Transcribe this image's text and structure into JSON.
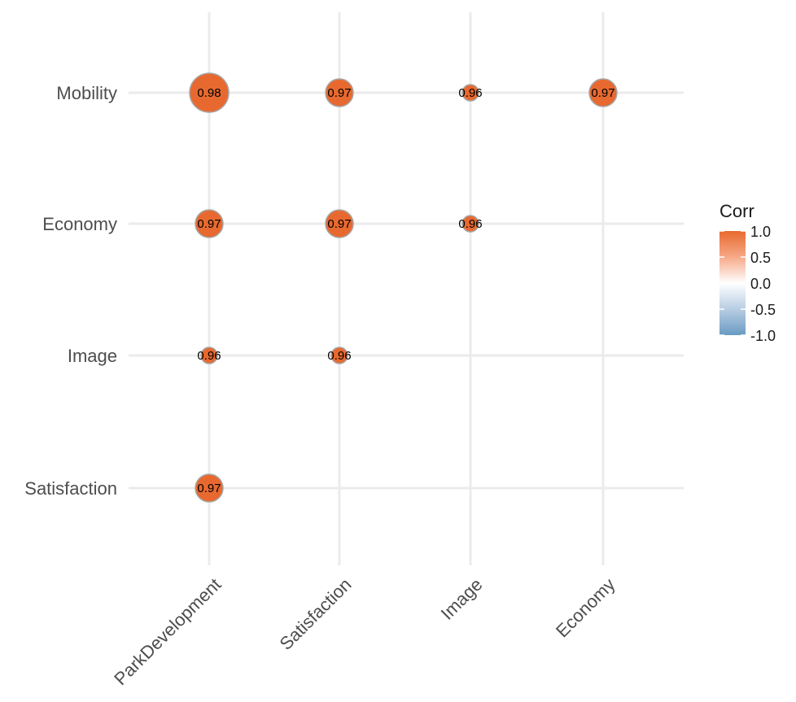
{
  "chart_data": {
    "type": "scatter",
    "subtype": "correlation-matrix",
    "title": "",
    "x_categories": [
      "ParkDevelopment",
      "Satisfaction",
      "Image",
      "Economy"
    ],
    "y_categories": [
      "Satisfaction",
      "Image",
      "Economy",
      "Mobility"
    ],
    "cells": [
      {
        "x": "ParkDevelopment",
        "y": "Mobility",
        "value": 0.98,
        "label": "0.98"
      },
      {
        "x": "Satisfaction",
        "y": "Mobility",
        "value": 0.97,
        "label": "0.97"
      },
      {
        "x": "Image",
        "y": "Mobility",
        "value": 0.96,
        "label": "0.96"
      },
      {
        "x": "Economy",
        "y": "Mobility",
        "value": 0.97,
        "label": "0.97"
      },
      {
        "x": "ParkDevelopment",
        "y": "Economy",
        "value": 0.97,
        "label": "0.97"
      },
      {
        "x": "Satisfaction",
        "y": "Economy",
        "value": 0.97,
        "label": "0.97"
      },
      {
        "x": "Image",
        "y": "Economy",
        "value": 0.96,
        "label": "0.96"
      },
      {
        "x": "ParkDevelopment",
        "y": "Image",
        "value": 0.96,
        "label": "0.96"
      },
      {
        "x": "Satisfaction",
        "y": "Image",
        "value": 0.96,
        "label": "0.96"
      },
      {
        "x": "ParkDevelopment",
        "y": "Satisfaction",
        "value": 0.97,
        "label": "0.97"
      }
    ],
    "grid": true,
    "legend": {
      "title": "Corr",
      "placement": "right",
      "ticks": [
        "1.0",
        "0.5",
        "0.0",
        "-0.5",
        "-1.0"
      ],
      "colors": {
        "high": "#e8692f",
        "mid": "#ffffff",
        "low": "#6a9bc3"
      }
    },
    "point_color": "#e8692f",
    "point_outline": "#a6a6a6"
  }
}
